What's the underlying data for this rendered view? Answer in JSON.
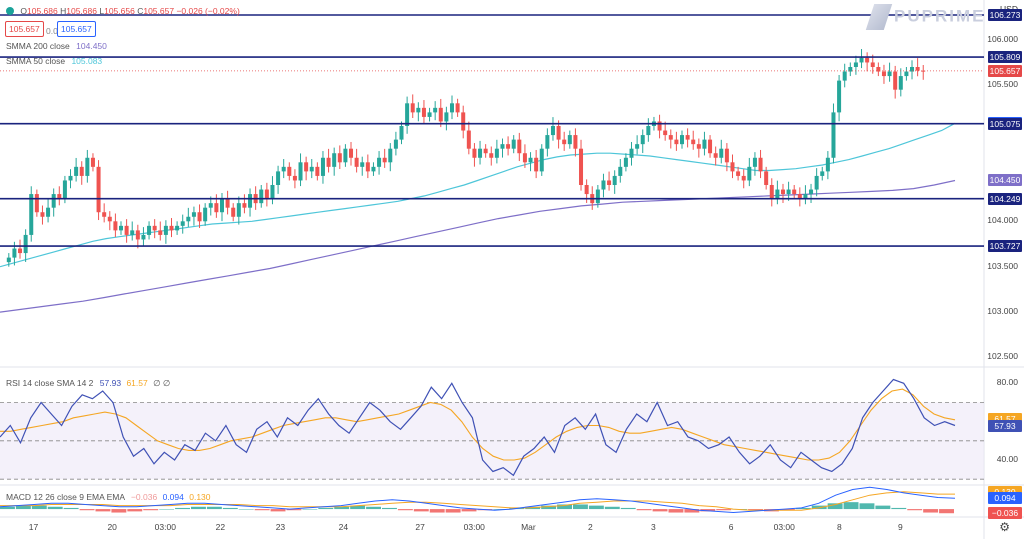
{
  "header": {
    "currency": "USD",
    "brand": "PUPRIME",
    "ohlc": {
      "o_label": "O",
      "o": "105.686",
      "h_label": "H",
      "h": "105.686",
      "l_label": "L",
      "l": "105.656",
      "c_label": "C",
      "c": "105.657",
      "chg": "−0.026 (−0.02%)"
    },
    "sell_price": "105.657",
    "spread": "0.000",
    "buy_price": "105.657"
  },
  "legends": {
    "smma200": {
      "label": "SMMA 200 close",
      "value": "104.450"
    },
    "smma50": {
      "label": "SMMA 50 close",
      "value": "105.083"
    },
    "rsi": {
      "label": "RSI 14 close SMA 14 2",
      "v1": "57.93",
      "v2": "61.57",
      "v3": "∅ ∅"
    },
    "macd": {
      "label": "MACD 12 26 close 9 EMA EMA",
      "v1": "−0.036",
      "v2": "0.094",
      "v3": "0.130"
    }
  },
  "colors": {
    "up": "#26a69a",
    "down": "#ef5350",
    "hline": "#1a237e",
    "smma50": "#4ec6d9",
    "smma200": "#7e6fc8",
    "rsi": "#3f51b5",
    "rsi_ma": "#f5a623",
    "macd_line": "#2962ff",
    "signal": "#f5a623",
    "last": "#e54848"
  },
  "chart_data": {
    "main": {
      "type": "candlestick",
      "y_ticks": [
        "106.000",
        "105.500",
        "104.000",
        "103.500",
        "103.000",
        "102.500"
      ],
      "ylim": [
        102.45,
        106.35
      ],
      "horizontal_levels": [
        "106.273",
        "105.809",
        "105.075",
        "104.249",
        "103.727"
      ],
      "price_labels": [
        {
          "text": "106.273",
          "color": "#1a237e"
        },
        {
          "text": "105.809",
          "color": "#1a237e"
        },
        {
          "text": "105.657",
          "color": "#e54848"
        },
        {
          "text": "105.083",
          "color": "#2962ff"
        },
        {
          "text": "105.075",
          "color": "#1a237e"
        },
        {
          "text": "104.450",
          "color": "#7e6fc8"
        },
        {
          "text": "104.249",
          "color": "#1a237e"
        },
        {
          "text": "103.727",
          "color": "#1a237e"
        }
      ],
      "close": [
        103.6,
        103.7,
        103.65,
        103.85,
        104.3,
        104.1,
        104.05,
        104.15,
        104.3,
        104.25,
        104.45,
        104.5,
        104.6,
        104.5,
        104.7,
        104.6,
        104.1,
        104.05,
        104.0,
        103.9,
        103.95,
        103.85,
        103.9,
        103.8,
        103.85,
        103.95,
        103.9,
        103.85,
        103.95,
        103.9,
        103.95,
        104.0,
        104.05,
        104.1,
        104.0,
        104.15,
        104.2,
        104.1,
        104.25,
        104.15,
        104.05,
        104.2,
        104.15,
        104.3,
        104.2,
        104.35,
        104.25,
        104.4,
        104.55,
        104.6,
        104.5,
        104.45,
        104.65,
        104.55,
        104.6,
        104.5,
        104.7,
        104.6,
        104.75,
        104.65,
        104.8,
        104.7,
        104.6,
        104.65,
        104.55,
        104.6,
        104.7,
        104.65,
        104.8,
        104.9,
        105.05,
        105.3,
        105.2,
        105.25,
        105.15,
        105.2,
        105.25,
        105.1,
        105.2,
        105.3,
        105.2,
        105.0,
        104.8,
        104.7,
        104.8,
        104.75,
        104.7,
        104.8,
        104.85,
        104.8,
        104.9,
        104.75,
        104.65,
        104.7,
        104.55,
        104.8,
        104.95,
        105.05,
        104.9,
        104.85,
        104.95,
        104.8,
        104.4,
        104.3,
        104.2,
        104.35,
        104.45,
        104.4,
        104.5,
        104.6,
        104.7,
        104.8,
        104.85,
        104.95,
        105.05,
        105.1,
        105.0,
        104.95,
        104.9,
        104.85,
        104.95,
        104.9,
        104.85,
        104.8,
        104.9,
        104.75,
        104.7,
        104.8,
        104.65,
        104.55,
        104.5,
        104.45,
        104.6,
        104.7,
        104.55,
        104.4,
        104.25,
        104.35,
        104.3,
        104.35,
        104.3,
        104.25,
        104.3,
        104.35,
        104.5,
        104.55,
        104.7,
        105.2,
        105.55,
        105.65,
        105.7,
        105.75,
        105.8,
        105.75,
        105.7,
        105.65,
        105.6,
        105.65,
        105.45,
        105.6,
        105.65,
        105.7,
        105.66,
        105.657
      ],
      "smma50": [
        103.5,
        103.54,
        103.58,
        103.62,
        103.66,
        103.7,
        103.74,
        103.78,
        103.81,
        103.83,
        103.85,
        103.87,
        103.89,
        103.91,
        103.93,
        103.95,
        103.97,
        103.98,
        103.99,
        104.0,
        104.02,
        104.04,
        104.06,
        104.08,
        104.1,
        104.12,
        104.14,
        104.16,
        104.18,
        104.2,
        104.22,
        104.25,
        104.28,
        104.32,
        104.36,
        104.4,
        104.45,
        104.5,
        104.55,
        104.6,
        104.64,
        104.68,
        104.71,
        104.73,
        104.74,
        104.75,
        104.75,
        104.74,
        104.73,
        104.72,
        104.7,
        104.68,
        104.66,
        104.64,
        104.62,
        104.6,
        104.58,
        104.56,
        104.56,
        104.57,
        104.58,
        104.6,
        104.62,
        104.65,
        104.68,
        104.72,
        104.76,
        104.8,
        104.85,
        104.9,
        104.95,
        105.0,
        105.08
      ],
      "smma200": [
        103.0,
        103.03,
        103.06,
        103.09,
        103.12,
        103.16,
        103.2,
        103.24,
        103.28,
        103.32,
        103.36,
        103.4,
        103.44,
        103.48,
        103.53,
        103.58,
        103.63,
        103.68,
        103.73,
        103.78,
        103.83,
        103.88,
        103.93,
        103.98,
        104.03,
        104.07,
        104.11,
        104.14,
        104.17,
        104.19,
        104.21,
        104.22,
        104.23,
        104.24,
        104.25,
        104.26,
        104.27,
        104.28,
        104.29,
        104.3,
        104.31,
        104.32,
        104.33,
        104.34,
        104.36,
        104.4,
        104.45
      ]
    },
    "rsi": {
      "type": "line",
      "y_ticks": [
        "80.00",
        "40.00"
      ],
      "ylim": [
        28,
        88
      ],
      "band": [
        70,
        30
      ],
      "midline": 50,
      "rsi": [
        52,
        58,
        49,
        62,
        70,
        64,
        58,
        68,
        74,
        72,
        76,
        70,
        52,
        42,
        46,
        38,
        44,
        40,
        48,
        45,
        54,
        50,
        58,
        48,
        44,
        56,
        60,
        52,
        62,
        58,
        66,
        72,
        64,
        58,
        54,
        62,
        70,
        66,
        60,
        56,
        62,
        68,
        78,
        72,
        80,
        70,
        62,
        40,
        34,
        36,
        32,
        42,
        46,
        52,
        44,
        58,
        62,
        56,
        64,
        48,
        44,
        56,
        64,
        60,
        70,
        58,
        60,
        52,
        50,
        46,
        48,
        52,
        44,
        38,
        42,
        48,
        40,
        36,
        44,
        40,
        36,
        34,
        38,
        46,
        62,
        70,
        76,
        82,
        80,
        72,
        62,
        58,
        60,
        58
      ],
      "rsi_ma": [
        55,
        55,
        56,
        57,
        58,
        59,
        60,
        62,
        63,
        64,
        65,
        64,
        62,
        58,
        54,
        50,
        48,
        46,
        45,
        45,
        46,
        48,
        50,
        51,
        52,
        54,
        56,
        58,
        59,
        60,
        61,
        62,
        62,
        61,
        60,
        61,
        62,
        63,
        64,
        66,
        68,
        70,
        69,
        66,
        60,
        52,
        46,
        42,
        40,
        40,
        41,
        44,
        48,
        52,
        55,
        57,
        58,
        58,
        57,
        55,
        54,
        54,
        55,
        56,
        57,
        56,
        54,
        52,
        50,
        48,
        47,
        46,
        45,
        44,
        43,
        42,
        41,
        40,
        40,
        41,
        44,
        50,
        58,
        66,
        72,
        76,
        77,
        74,
        68,
        64,
        62,
        61
      ]
    },
    "macd": {
      "type": "bar+line",
      "y_labels": [
        "0.130",
        "0.094",
        "−0.036"
      ],
      "histogram": [
        0.02,
        0.03,
        0.03,
        0.02,
        0.01,
        -0.01,
        -0.02,
        -0.03,
        -0.02,
        -0.01,
        0.0,
        0.01,
        0.02,
        0.02,
        0.01,
        0.0,
        -0.01,
        -0.02,
        -0.01,
        0.0,
        0.01,
        0.02,
        0.03,
        0.02,
        0.01,
        -0.01,
        -0.02,
        -0.03,
        -0.03,
        -0.02,
        -0.01,
        0.0,
        0.01,
        0.02,
        0.03,
        0.04,
        0.04,
        0.03,
        0.02,
        0.01,
        -0.01,
        -0.02,
        -0.03,
        -0.03,
        -0.02,
        -0.01,
        0.0,
        -0.01,
        -0.02,
        -0.01,
        0.01,
        0.03,
        0.05,
        0.06,
        0.05,
        0.03,
        0.01,
        -0.01,
        -0.03,
        -0.036
      ],
      "macd_line": [
        0.02,
        0.03,
        0.04,
        0.05,
        0.05,
        0.04,
        0.03,
        0.02,
        0.02,
        0.03,
        0.04,
        0.05,
        0.05,
        0.04,
        0.03,
        0.02,
        0.01,
        0.0,
        0.01,
        0.02,
        0.03,
        0.05,
        0.07,
        0.08,
        0.07,
        0.05,
        0.03,
        0.01,
        0.0,
        -0.01,
        0.0,
        0.02,
        0.04,
        0.06,
        0.08,
        0.09,
        0.08,
        0.07,
        0.05,
        0.03,
        0.01,
        -0.01,
        -0.02,
        -0.03,
        -0.02,
        -0.01,
        0.0,
        0.01,
        0.05,
        0.12,
        0.17,
        0.19,
        0.17,
        0.14,
        0.12,
        0.1,
        0.094
      ],
      "signal_line": [
        0.03,
        0.03,
        0.03,
        0.04,
        0.04,
        0.04,
        0.04,
        0.03,
        0.03,
        0.03,
        0.03,
        0.04,
        0.04,
        0.04,
        0.04,
        0.03,
        0.03,
        0.02,
        0.02,
        0.02,
        0.02,
        0.03,
        0.04,
        0.05,
        0.06,
        0.06,
        0.05,
        0.04,
        0.03,
        0.02,
        0.01,
        0.01,
        0.02,
        0.03,
        0.05,
        0.06,
        0.07,
        0.07,
        0.07,
        0.06,
        0.05,
        0.03,
        0.02,
        0.0,
        -0.01,
        -0.01,
        -0.01,
        -0.01,
        0.01,
        0.04,
        0.08,
        0.12,
        0.14,
        0.15,
        0.14,
        0.13,
        0.13
      ]
    },
    "x_ticks": [
      {
        "label": "17",
        "pos": 0.034
      },
      {
        "label": "20",
        "pos": 0.114
      },
      {
        "label": "03:00",
        "pos": 0.168
      },
      {
        "label": "22",
        "pos": 0.224
      },
      {
        "label": "23",
        "pos": 0.285
      },
      {
        "label": "24",
        "pos": 0.349
      },
      {
        "label": "27",
        "pos": 0.427
      },
      {
        "label": "03:00",
        "pos": 0.482
      },
      {
        "label": "Mar",
        "pos": 0.537
      },
      {
        "label": "2",
        "pos": 0.6
      },
      {
        "label": "3",
        "pos": 0.664
      },
      {
        "label": "6",
        "pos": 0.743
      },
      {
        "label": "03:00",
        "pos": 0.797
      },
      {
        "label": "8",
        "pos": 0.853
      },
      {
        "label": "9",
        "pos": 0.915
      }
    ]
  }
}
